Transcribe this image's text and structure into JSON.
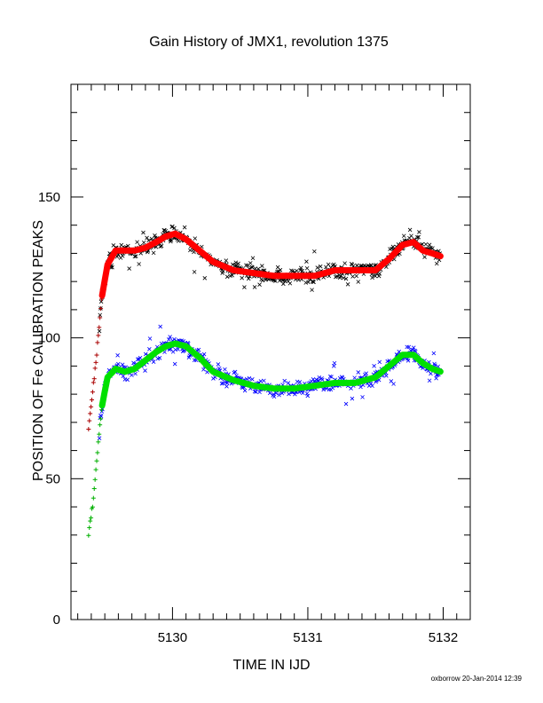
{
  "chart_data": {
    "type": "scatter",
    "title": "Gain History of JMX1, revolution 1375",
    "xlabel": "TIME IN IJD",
    "ylabel": "POSITION OF Fe CALIBRATION PEAKS",
    "xlim": [
      5129.25,
      5132.2
    ],
    "ylim": [
      0,
      190
    ],
    "xticks": [
      5130,
      5131,
      5132
    ],
    "yticks": [
      0,
      50,
      100,
      150
    ],
    "grid": false,
    "legend": "none",
    "colors": {
      "upper_points": "#000000",
      "upper_fit": "#ff0000",
      "lower_points": "#0000ff",
      "lower_fit": "#00e000"
    },
    "series": [
      {
        "role": "upper-calibration-points",
        "x": [
          5129.38,
          5129.42,
          5129.45,
          5129.48,
          5129.52,
          5129.58,
          5129.65,
          5129.72,
          5129.8,
          5129.88,
          5129.95,
          5130.02,
          5130.1,
          5130.2,
          5130.3,
          5130.45,
          5130.6,
          5130.75,
          5130.9,
          5131.05,
          5131.2,
          5131.35,
          5131.5,
          5131.6,
          5131.7,
          5131.78,
          5131.85,
          5131.92,
          5131.98
        ],
        "y": [
          68,
          85,
          100,
          115,
          126,
          131,
          131,
          131,
          132,
          134,
          136,
          137,
          135,
          131,
          127,
          124,
          123,
          122,
          122,
          122,
          124,
          124,
          124,
          128,
          133,
          134,
          131,
          130,
          129
        ]
      },
      {
        "role": "upper-fit-curve",
        "x": [
          5129.38,
          5129.42,
          5129.45,
          5129.48,
          5129.52,
          5129.58,
          5129.65,
          5129.72,
          5129.8,
          5129.88,
          5129.95,
          5130.02,
          5130.1,
          5130.2,
          5130.3,
          5130.45,
          5130.6,
          5130.75,
          5130.9,
          5131.05,
          5131.2,
          5131.35,
          5131.5,
          5131.6,
          5131.7,
          5131.78,
          5131.85,
          5131.92,
          5131.98
        ],
        "y": [
          68,
          85,
          100,
          115,
          126,
          131,
          131,
          131,
          132,
          134,
          136,
          137,
          135,
          131,
          127,
          124,
          123,
          122,
          122,
          122,
          124,
          124,
          124,
          128,
          133,
          134,
          131,
          130,
          129
        ]
      },
      {
        "role": "lower-calibration-points",
        "x": [
          5129.38,
          5129.42,
          5129.45,
          5129.48,
          5129.52,
          5129.58,
          5129.65,
          5129.72,
          5129.8,
          5129.88,
          5129.95,
          5130.02,
          5130.1,
          5130.2,
          5130.3,
          5130.45,
          5130.6,
          5130.75,
          5130.9,
          5131.05,
          5131.2,
          5131.35,
          5131.5,
          5131.6,
          5131.7,
          5131.78,
          5131.85,
          5131.92,
          5131.98
        ],
        "y": [
          30,
          45,
          62,
          76,
          86,
          89,
          88,
          89,
          92,
          95,
          97,
          98,
          97,
          93,
          88,
          85,
          83,
          82,
          82,
          83,
          84,
          84,
          86,
          90,
          94,
          94,
          91,
          89,
          88
        ]
      },
      {
        "role": "lower-fit-curve",
        "x": [
          5129.38,
          5129.42,
          5129.45,
          5129.48,
          5129.52,
          5129.58,
          5129.65,
          5129.72,
          5129.8,
          5129.88,
          5129.95,
          5130.02,
          5130.1,
          5130.2,
          5130.3,
          5130.45,
          5130.6,
          5130.75,
          5130.9,
          5131.05,
          5131.2,
          5131.35,
          5131.5,
          5131.6,
          5131.7,
          5131.78,
          5131.85,
          5131.92,
          5131.98
        ],
        "y": [
          30,
          45,
          62,
          76,
          86,
          89,
          88,
          89,
          92,
          95,
          97,
          98,
          97,
          93,
          88,
          85,
          83,
          82,
          82,
          83,
          84,
          84,
          86,
          90,
          94,
          94,
          91,
          89,
          88
        ]
      }
    ]
  },
  "footer": {
    "credit": "oxborrow 20-Jan-2014 12:39"
  }
}
